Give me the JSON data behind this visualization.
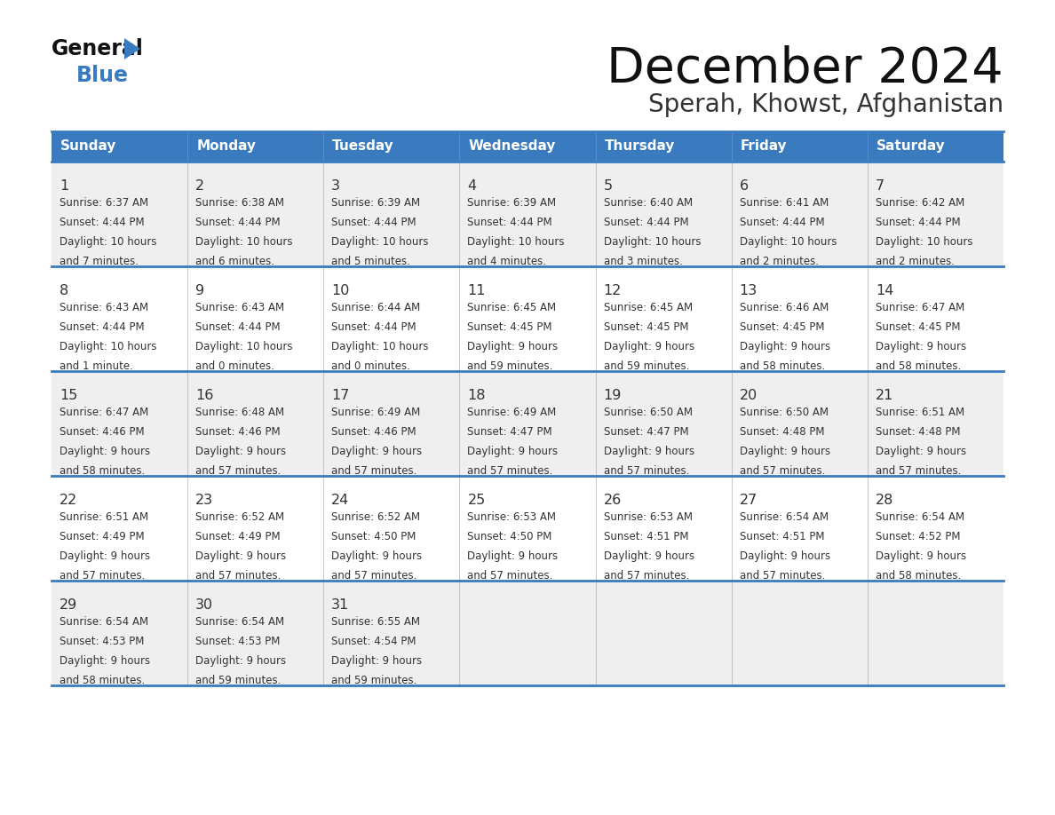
{
  "title": "December 2024",
  "subtitle": "Sperah, Khowst, Afghanistan",
  "header_bg": "#3a7abf",
  "header_text_color": "#ffffff",
  "day_names": [
    "Sunday",
    "Monday",
    "Tuesday",
    "Wednesday",
    "Thursday",
    "Friday",
    "Saturday"
  ],
  "row_bg_odd": "#efefef",
  "row_bg_even": "#ffffff",
  "cell_text_color": "#333333",
  "border_color": "#3a7abf",
  "days": [
    {
      "day": 1,
      "col": 0,
      "row": 0,
      "sunrise": "6:37 AM",
      "sunset": "4:44 PM",
      "daylight": "10 hours and 7 minutes."
    },
    {
      "day": 2,
      "col": 1,
      "row": 0,
      "sunrise": "6:38 AM",
      "sunset": "4:44 PM",
      "daylight": "10 hours and 6 minutes."
    },
    {
      "day": 3,
      "col": 2,
      "row": 0,
      "sunrise": "6:39 AM",
      "sunset": "4:44 PM",
      "daylight": "10 hours and 5 minutes."
    },
    {
      "day": 4,
      "col": 3,
      "row": 0,
      "sunrise": "6:39 AM",
      "sunset": "4:44 PM",
      "daylight": "10 hours and 4 minutes."
    },
    {
      "day": 5,
      "col": 4,
      "row": 0,
      "sunrise": "6:40 AM",
      "sunset": "4:44 PM",
      "daylight": "10 hours and 3 minutes."
    },
    {
      "day": 6,
      "col": 5,
      "row": 0,
      "sunrise": "6:41 AM",
      "sunset": "4:44 PM",
      "daylight": "10 hours and 2 minutes."
    },
    {
      "day": 7,
      "col": 6,
      "row": 0,
      "sunrise": "6:42 AM",
      "sunset": "4:44 PM",
      "daylight": "10 hours and 2 minutes."
    },
    {
      "day": 8,
      "col": 0,
      "row": 1,
      "sunrise": "6:43 AM",
      "sunset": "4:44 PM",
      "daylight": "10 hours and 1 minute."
    },
    {
      "day": 9,
      "col": 1,
      "row": 1,
      "sunrise": "6:43 AM",
      "sunset": "4:44 PM",
      "daylight": "10 hours and 0 minutes."
    },
    {
      "day": 10,
      "col": 2,
      "row": 1,
      "sunrise": "6:44 AM",
      "sunset": "4:44 PM",
      "daylight": "10 hours and 0 minutes."
    },
    {
      "day": 11,
      "col": 3,
      "row": 1,
      "sunrise": "6:45 AM",
      "sunset": "4:45 PM",
      "daylight": "9 hours and 59 minutes."
    },
    {
      "day": 12,
      "col": 4,
      "row": 1,
      "sunrise": "6:45 AM",
      "sunset": "4:45 PM",
      "daylight": "9 hours and 59 minutes."
    },
    {
      "day": 13,
      "col": 5,
      "row": 1,
      "sunrise": "6:46 AM",
      "sunset": "4:45 PM",
      "daylight": "9 hours and 58 minutes."
    },
    {
      "day": 14,
      "col": 6,
      "row": 1,
      "sunrise": "6:47 AM",
      "sunset": "4:45 PM",
      "daylight": "9 hours and 58 minutes."
    },
    {
      "day": 15,
      "col": 0,
      "row": 2,
      "sunrise": "6:47 AM",
      "sunset": "4:46 PM",
      "daylight": "9 hours and 58 minutes."
    },
    {
      "day": 16,
      "col": 1,
      "row": 2,
      "sunrise": "6:48 AM",
      "sunset": "4:46 PM",
      "daylight": "9 hours and 57 minutes."
    },
    {
      "day": 17,
      "col": 2,
      "row": 2,
      "sunrise": "6:49 AM",
      "sunset": "4:46 PM",
      "daylight": "9 hours and 57 minutes."
    },
    {
      "day": 18,
      "col": 3,
      "row": 2,
      "sunrise": "6:49 AM",
      "sunset": "4:47 PM",
      "daylight": "9 hours and 57 minutes."
    },
    {
      "day": 19,
      "col": 4,
      "row": 2,
      "sunrise": "6:50 AM",
      "sunset": "4:47 PM",
      "daylight": "9 hours and 57 minutes."
    },
    {
      "day": 20,
      "col": 5,
      "row": 2,
      "sunrise": "6:50 AM",
      "sunset": "4:48 PM",
      "daylight": "9 hours and 57 minutes."
    },
    {
      "day": 21,
      "col": 6,
      "row": 2,
      "sunrise": "6:51 AM",
      "sunset": "4:48 PM",
      "daylight": "9 hours and 57 minutes."
    },
    {
      "day": 22,
      "col": 0,
      "row": 3,
      "sunrise": "6:51 AM",
      "sunset": "4:49 PM",
      "daylight": "9 hours and 57 minutes."
    },
    {
      "day": 23,
      "col": 1,
      "row": 3,
      "sunrise": "6:52 AM",
      "sunset": "4:49 PM",
      "daylight": "9 hours and 57 minutes."
    },
    {
      "day": 24,
      "col": 2,
      "row": 3,
      "sunrise": "6:52 AM",
      "sunset": "4:50 PM",
      "daylight": "9 hours and 57 minutes."
    },
    {
      "day": 25,
      "col": 3,
      "row": 3,
      "sunrise": "6:53 AM",
      "sunset": "4:50 PM",
      "daylight": "9 hours and 57 minutes."
    },
    {
      "day": 26,
      "col": 4,
      "row": 3,
      "sunrise": "6:53 AM",
      "sunset": "4:51 PM",
      "daylight": "9 hours and 57 minutes."
    },
    {
      "day": 27,
      "col": 5,
      "row": 3,
      "sunrise": "6:54 AM",
      "sunset": "4:51 PM",
      "daylight": "9 hours and 57 minutes."
    },
    {
      "day": 28,
      "col": 6,
      "row": 3,
      "sunrise": "6:54 AM",
      "sunset": "4:52 PM",
      "daylight": "9 hours and 58 minutes."
    },
    {
      "day": 29,
      "col": 0,
      "row": 4,
      "sunrise": "6:54 AM",
      "sunset": "4:53 PM",
      "daylight": "9 hours and 58 minutes."
    },
    {
      "day": 30,
      "col": 1,
      "row": 4,
      "sunrise": "6:54 AM",
      "sunset": "4:53 PM",
      "daylight": "9 hours and 59 minutes."
    },
    {
      "day": 31,
      "col": 2,
      "row": 4,
      "sunrise": "6:55 AM",
      "sunset": "4:54 PM",
      "daylight": "9 hours and 59 minutes."
    }
  ]
}
